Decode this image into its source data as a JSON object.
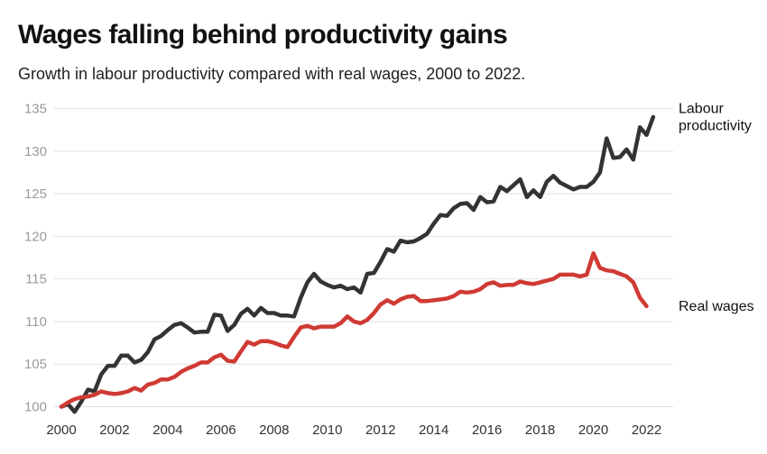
{
  "header": {
    "title": "Wages falling behind productivity gains",
    "subtitle": "Growth in labour productivity compared with real wages, 2000 to 2022."
  },
  "colors": {
    "productivity": "#333333",
    "wages": "#d03a34",
    "grid": "#e2e2e2",
    "axis_tick_text": "#9a9a9a"
  },
  "chart_data": {
    "type": "line",
    "title": "Wages falling behind productivity gains",
    "subtitle": "Growth in labour productivity compared with real wages, 2000 to 2022.",
    "xlabel": "",
    "ylabel": "",
    "xlim": [
      2000,
      2023
    ],
    "ylim": [
      99,
      136
    ],
    "yticks": [
      100,
      105,
      110,
      115,
      120,
      125,
      130,
      135
    ],
    "xticks": [
      2000,
      2002,
      2004,
      2006,
      2008,
      2010,
      2012,
      2014,
      2016,
      2018,
      2020,
      2022
    ],
    "grid": true,
    "legend": "direct-labels-right",
    "series": [
      {
        "name": "Labour productivity",
        "label_lines": [
          "Labour",
          "productivity"
        ],
        "color": "#333333",
        "points": [
          [
            2000.0,
            100.0
          ],
          [
            2000.25,
            100.3
          ],
          [
            2000.5,
            99.4
          ],
          [
            2000.75,
            100.6
          ],
          [
            2001.0,
            102.0
          ],
          [
            2001.25,
            101.8
          ],
          [
            2001.5,
            103.8
          ],
          [
            2001.75,
            104.8
          ],
          [
            2002.0,
            104.8
          ],
          [
            2002.25,
            106.0
          ],
          [
            2002.5,
            106.0
          ],
          [
            2002.75,
            105.2
          ],
          [
            2003.0,
            105.5
          ],
          [
            2003.25,
            106.4
          ],
          [
            2003.5,
            107.9
          ],
          [
            2003.75,
            108.3
          ],
          [
            2004.0,
            109.0
          ],
          [
            2004.25,
            109.6
          ],
          [
            2004.5,
            109.8
          ],
          [
            2004.75,
            109.3
          ],
          [
            2005.0,
            108.7
          ],
          [
            2005.25,
            108.8
          ],
          [
            2005.5,
            108.8
          ],
          [
            2005.75,
            110.8
          ],
          [
            2006.0,
            110.7
          ],
          [
            2006.25,
            108.9
          ],
          [
            2006.5,
            109.6
          ],
          [
            2006.75,
            110.9
          ],
          [
            2007.0,
            111.5
          ],
          [
            2007.25,
            110.7
          ],
          [
            2007.5,
            111.6
          ],
          [
            2007.75,
            111.0
          ],
          [
            2008.0,
            111.0
          ],
          [
            2008.25,
            110.7
          ],
          [
            2008.5,
            110.7
          ],
          [
            2008.75,
            110.6
          ],
          [
            2009.0,
            112.8
          ],
          [
            2009.25,
            114.6
          ],
          [
            2009.5,
            115.6
          ],
          [
            2009.75,
            114.7
          ],
          [
            2010.0,
            114.3
          ],
          [
            2010.25,
            114.0
          ],
          [
            2010.5,
            114.2
          ],
          [
            2010.75,
            113.8
          ],
          [
            2011.0,
            114.0
          ],
          [
            2011.25,
            113.4
          ],
          [
            2011.5,
            115.6
          ],
          [
            2011.75,
            115.7
          ],
          [
            2012.0,
            117.0
          ],
          [
            2012.25,
            118.5
          ],
          [
            2012.5,
            118.2
          ],
          [
            2012.75,
            119.5
          ],
          [
            2013.0,
            119.3
          ],
          [
            2013.25,
            119.4
          ],
          [
            2013.5,
            119.8
          ],
          [
            2013.75,
            120.3
          ],
          [
            2014.0,
            121.5
          ],
          [
            2014.25,
            122.5
          ],
          [
            2014.5,
            122.4
          ],
          [
            2014.75,
            123.3
          ],
          [
            2015.0,
            123.8
          ],
          [
            2015.25,
            123.9
          ],
          [
            2015.5,
            123.1
          ],
          [
            2015.75,
            124.6
          ],
          [
            2016.0,
            124.0
          ],
          [
            2016.25,
            124.1
          ],
          [
            2016.5,
            125.8
          ],
          [
            2016.75,
            125.3
          ],
          [
            2017.0,
            126.0
          ],
          [
            2017.25,
            126.7
          ],
          [
            2017.5,
            124.6
          ],
          [
            2017.75,
            125.4
          ],
          [
            2018.0,
            124.6
          ],
          [
            2018.25,
            126.4
          ],
          [
            2018.5,
            127.1
          ],
          [
            2018.75,
            126.3
          ],
          [
            2019.0,
            125.9
          ],
          [
            2019.25,
            125.5
          ],
          [
            2019.5,
            125.8
          ],
          [
            2019.75,
            125.8
          ],
          [
            2020.0,
            126.4
          ],
          [
            2020.25,
            127.5
          ],
          [
            2020.5,
            131.5
          ],
          [
            2020.75,
            129.2
          ],
          [
            2021.0,
            129.3
          ],
          [
            2021.25,
            130.2
          ],
          [
            2021.5,
            129.0
          ],
          [
            2021.75,
            132.8
          ],
          [
            2022.0,
            131.9
          ],
          [
            2022.25,
            134.0
          ]
        ]
      },
      {
        "name": "Real wages",
        "label_lines": [
          "Real wages"
        ],
        "color": "#d03a34",
        "points": [
          [
            2000.0,
            100.0
          ],
          [
            2000.25,
            100.5
          ],
          [
            2000.5,
            100.9
          ],
          [
            2000.75,
            101.1
          ],
          [
            2001.0,
            101.2
          ],
          [
            2001.25,
            101.4
          ],
          [
            2001.5,
            101.8
          ],
          [
            2001.75,
            101.6
          ],
          [
            2002.0,
            101.5
          ],
          [
            2002.25,
            101.6
          ],
          [
            2002.5,
            101.8
          ],
          [
            2002.75,
            102.2
          ],
          [
            2003.0,
            101.9
          ],
          [
            2003.25,
            102.6
          ],
          [
            2003.5,
            102.8
          ],
          [
            2003.75,
            103.2
          ],
          [
            2004.0,
            103.2
          ],
          [
            2004.25,
            103.5
          ],
          [
            2004.5,
            104.1
          ],
          [
            2004.75,
            104.5
          ],
          [
            2005.0,
            104.8
          ],
          [
            2005.25,
            105.2
          ],
          [
            2005.5,
            105.2
          ],
          [
            2005.75,
            105.8
          ],
          [
            2006.0,
            106.1
          ],
          [
            2006.25,
            105.4
          ],
          [
            2006.5,
            105.3
          ],
          [
            2006.75,
            106.5
          ],
          [
            2007.0,
            107.6
          ],
          [
            2007.25,
            107.3
          ],
          [
            2007.5,
            107.7
          ],
          [
            2007.75,
            107.7
          ],
          [
            2008.0,
            107.5
          ],
          [
            2008.25,
            107.2
          ],
          [
            2008.5,
            107.0
          ],
          [
            2008.75,
            108.2
          ],
          [
            2009.0,
            109.3
          ],
          [
            2009.25,
            109.5
          ],
          [
            2009.5,
            109.2
          ],
          [
            2009.75,
            109.4
          ],
          [
            2010.0,
            109.4
          ],
          [
            2010.25,
            109.4
          ],
          [
            2010.5,
            109.8
          ],
          [
            2010.75,
            110.6
          ],
          [
            2011.0,
            110.0
          ],
          [
            2011.25,
            109.8
          ],
          [
            2011.5,
            110.2
          ],
          [
            2011.75,
            111.0
          ],
          [
            2012.0,
            112.0
          ],
          [
            2012.25,
            112.5
          ],
          [
            2012.5,
            112.1
          ],
          [
            2012.75,
            112.6
          ],
          [
            2013.0,
            112.9
          ],
          [
            2013.25,
            113.0
          ],
          [
            2013.5,
            112.4
          ],
          [
            2013.75,
            112.4
          ],
          [
            2014.0,
            112.5
          ],
          [
            2014.25,
            112.6
          ],
          [
            2014.5,
            112.7
          ],
          [
            2014.75,
            113.0
          ],
          [
            2015.0,
            113.5
          ],
          [
            2015.25,
            113.4
          ],
          [
            2015.5,
            113.5
          ],
          [
            2015.75,
            113.8
          ],
          [
            2016.0,
            114.4
          ],
          [
            2016.25,
            114.6
          ],
          [
            2016.5,
            114.2
          ],
          [
            2016.75,
            114.3
          ],
          [
            2017.0,
            114.3
          ],
          [
            2017.25,
            114.7
          ],
          [
            2017.5,
            114.5
          ],
          [
            2017.75,
            114.4
          ],
          [
            2018.0,
            114.6
          ],
          [
            2018.25,
            114.8
          ],
          [
            2018.5,
            115.0
          ],
          [
            2018.75,
            115.5
          ],
          [
            2019.0,
            115.5
          ],
          [
            2019.25,
            115.5
          ],
          [
            2019.5,
            115.3
          ],
          [
            2019.75,
            115.5
          ],
          [
            2020.0,
            118.0
          ],
          [
            2020.25,
            116.3
          ],
          [
            2020.5,
            116.0
          ],
          [
            2020.75,
            115.9
          ],
          [
            2021.0,
            115.6
          ],
          [
            2021.25,
            115.3
          ],
          [
            2021.5,
            114.6
          ],
          [
            2021.75,
            112.8
          ],
          [
            2022.0,
            111.8
          ]
        ]
      }
    ]
  }
}
